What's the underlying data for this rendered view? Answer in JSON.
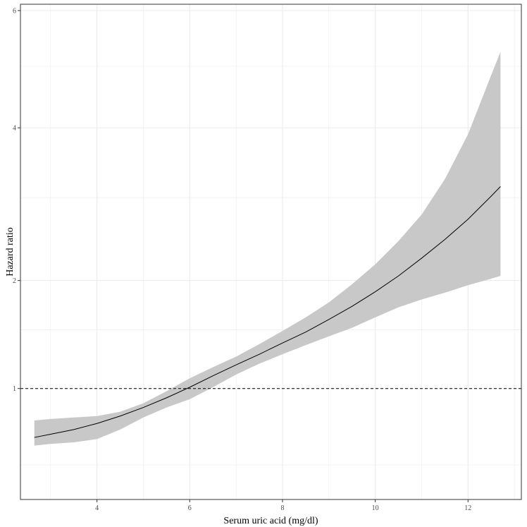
{
  "chart_data": {
    "type": "line",
    "title": "",
    "xlabel": "Serum uric acid (mg/dl)",
    "ylabel": "Hazard ratio",
    "xlim": [
      2.35,
      13.15
    ],
    "ylim": [
      0.33,
      6.12
    ],
    "x_ticks": [
      4,
      6,
      8,
      10,
      12
    ],
    "x_minor_ticks": [
      3,
      5,
      7,
      9,
      11,
      13
    ],
    "y_ticks": [
      1,
      2,
      4,
      6
    ],
    "y_tick_labels": [
      "1",
      "2",
      "4",
      "6"
    ],
    "y_minor_ticks": [
      0.5,
      1.5,
      3,
      5
    ],
    "grid": true,
    "reference_line": {
      "y": 1,
      "style": "dashed",
      "color": "#000000"
    },
    "series": [
      {
        "x": [
          2.65,
          3.0,
          3.5,
          4.0,
          4.5,
          5.0,
          5.5,
          6.0,
          6.5,
          7.0,
          7.5,
          8.0,
          8.5,
          9.0,
          9.5,
          10.0,
          10.5,
          11.0,
          11.5,
          12.0,
          12.5,
          12.7
        ],
        "y": [
          0.66,
          0.68,
          0.71,
          0.75,
          0.8,
          0.86,
          0.93,
          1.01,
          1.1,
          1.19,
          1.28,
          1.38,
          1.48,
          1.6,
          1.73,
          1.88,
          2.05,
          2.25,
          2.47,
          2.72,
          3.02,
          3.15
        ],
        "lower": [
          0.61,
          0.62,
          0.63,
          0.65,
          0.71,
          0.79,
          0.86,
          0.92,
          1.01,
          1.11,
          1.2,
          1.28,
          1.36,
          1.44,
          1.52,
          1.62,
          1.72,
          1.8,
          1.87,
          1.95,
          2.02,
          2.05
        ],
        "upper": [
          0.77,
          0.78,
          0.79,
          0.8,
          0.83,
          0.89,
          0.98,
          1.08,
          1.17,
          1.26,
          1.37,
          1.49,
          1.62,
          1.77,
          1.96,
          2.18,
          2.45,
          2.78,
          3.25,
          3.9,
          4.85,
          5.25
        ]
      }
    ],
    "colors": {
      "line": "#000000",
      "ribbon": "#c8c8c8",
      "grid": "#ebebeb",
      "panel_border": "#333333",
      "tick_text": "#4d4d4d"
    }
  }
}
